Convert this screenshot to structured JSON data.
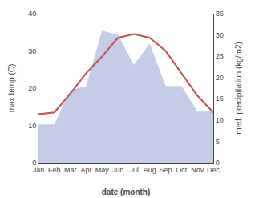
{
  "chart_data": {
    "type": "line",
    "categories": [
      "Jan",
      "Feb",
      "Mar",
      "Apr",
      "May",
      "Jun",
      "Jul",
      "Aug",
      "Sep",
      "Oct",
      "Nov",
      "Dec"
    ],
    "x_label": "date (month)",
    "y_label": "max temp (C)",
    "y2_label": "med. precipitation (kg/m2)",
    "ylim": [
      0,
      40
    ],
    "yticks": [
      0,
      10,
      20,
      30,
      40
    ],
    "y2lim": [
      0,
      35
    ],
    "y2ticks": [
      0,
      5,
      10,
      15,
      20,
      25,
      30,
      35
    ],
    "grid": false,
    "series": [
      {
        "type": "area",
        "axis": "y2",
        "color": "#c5cce8",
        "values": [
          9,
          9,
          17,
          18,
          31,
          30,
          23,
          28,
          18,
          18,
          12,
          12
        ]
      },
      {
        "type": "line",
        "axis": "y",
        "color": "#c0504d",
        "values": [
          13.0,
          13.5,
          18.5,
          24.0,
          28.5,
          33.5,
          34.5,
          33.5,
          30.0,
          24.0,
          18.0,
          13.5
        ]
      }
    ]
  }
}
